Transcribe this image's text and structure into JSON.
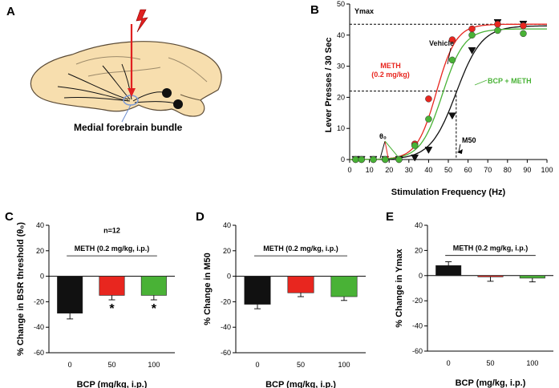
{
  "panels": {
    "A": {
      "label": "A",
      "caption": "Medial forebrain bundle"
    },
    "B": {
      "label": "B"
    },
    "C": {
      "label": "C"
    },
    "D": {
      "label": "D"
    },
    "E": {
      "label": "E"
    }
  },
  "colors": {
    "vehicle": "#111111",
    "meth": "#e8261f",
    "bcp_meth": "#49b236",
    "brain": "#f7deae",
    "arrow": "#e02020",
    "mfb": "#9ab4e4"
  },
  "chart_data": [
    {
      "panel": "B",
      "type": "scatter",
      "xlabel": "Stimulation Frequency (Hz)",
      "ylabel": "Lever Presses / 30 Sec",
      "xlim": [
        0,
        100
      ],
      "ylim": [
        0,
        50
      ],
      "xticks": [
        "0",
        "10",
        "20",
        "30",
        "40",
        "50",
        "60",
        "70",
        "80",
        "90",
        "100"
      ],
      "yticks": [
        "0",
        "10",
        "20",
        "30",
        "40",
        "50"
      ],
      "annotations": {
        "ymax": "Ymax",
        "theta": "θ₀",
        "m50": "M50"
      },
      "series": [
        {
          "name": "Vehicle",
          "color": "#111111",
          "marker": "triangle",
          "x": [
            3,
            6,
            12,
            18,
            25,
            33,
            40,
            52,
            62,
            75,
            88
          ],
          "y": [
            0,
            0,
            0,
            0,
            0,
            0.5,
            3,
            14,
            35,
            44,
            43.5
          ],
          "fit": {
            "ymax": 43,
            "x50": 54,
            "slope": 6.5
          }
        },
        {
          "name": "METH\n(0.2 mg/kg)",
          "color": "#e8261f",
          "marker": "circle",
          "x": [
            3,
            6,
            12,
            18,
            25,
            33,
            40,
            52,
            62,
            75,
            88
          ],
          "y": [
            0,
            0,
            0,
            0,
            0,
            5,
            19.5,
            38.5,
            42,
            43.5,
            43
          ],
          "fit": {
            "ymax": 43.5,
            "x50": 44,
            "slope": 5
          }
        },
        {
          "name": "BCP + METH",
          "color": "#49b236",
          "marker": "circle",
          "x": [
            3,
            6,
            12,
            18,
            25,
            33,
            40,
            52,
            62,
            75,
            88
          ],
          "y": [
            0,
            0,
            0,
            0,
            0,
            4.5,
            13,
            32,
            40,
            41.5,
            40.5
          ],
          "fit": {
            "ymax": 42,
            "x50": 47,
            "slope": 5.5
          }
        }
      ]
    },
    {
      "panel": "C",
      "type": "bar",
      "ylabel": "% Change in BSR threshold (θ₀)",
      "xlabel": "BCP (mg/kg, i.p.)",
      "categories": [
        "0",
        "50",
        "100"
      ],
      "values": [
        -29,
        -15,
        -15
      ],
      "errors": [
        4.5,
        3.5,
        3.5
      ],
      "bar_colors": [
        "#111111",
        "#e8261f",
        "#49b236"
      ],
      "ylim": [
        -60,
        40
      ],
      "yticks": [
        "40",
        "20",
        "0",
        "-20",
        "-40",
        "-60"
      ],
      "group_label": "METH (0.2 mg/kg, i.p.)",
      "n_label": "n=12",
      "significance": [
        "",
        "*",
        "*"
      ]
    },
    {
      "panel": "D",
      "type": "bar",
      "ylabel": "% Change in M50",
      "xlabel": "BCP (mg/kg, i.p.)",
      "categories": [
        "0",
        "50",
        "100"
      ],
      "values": [
        -22,
        -13,
        -16
      ],
      "errors": [
        3.5,
        3,
        3
      ],
      "bar_colors": [
        "#111111",
        "#e8261f",
        "#49b236"
      ],
      "ylim": [
        -60,
        40
      ],
      "yticks": [
        "40",
        "20",
        "0",
        "-20",
        "-40",
        "-60"
      ],
      "group_label": "METH (0.2 mg/kg, i.p.)"
    },
    {
      "panel": "E",
      "type": "bar",
      "ylabel": "% Change in Ymax",
      "xlabel": "BCP (mg/kg, i.p.)",
      "categories": [
        "0",
        "50",
        "100"
      ],
      "values": [
        8,
        -1,
        -2
      ],
      "errors": [
        3,
        3.5,
        3
      ],
      "bar_colors": [
        "#111111",
        "#e8261f",
        "#49b236"
      ],
      "ylim": [
        -60,
        40
      ],
      "yticks": [
        "40",
        "20",
        "0",
        "-20",
        "-40",
        "-60"
      ],
      "group_label": "METH (0.2 mg/kg, i.p.)"
    }
  ]
}
